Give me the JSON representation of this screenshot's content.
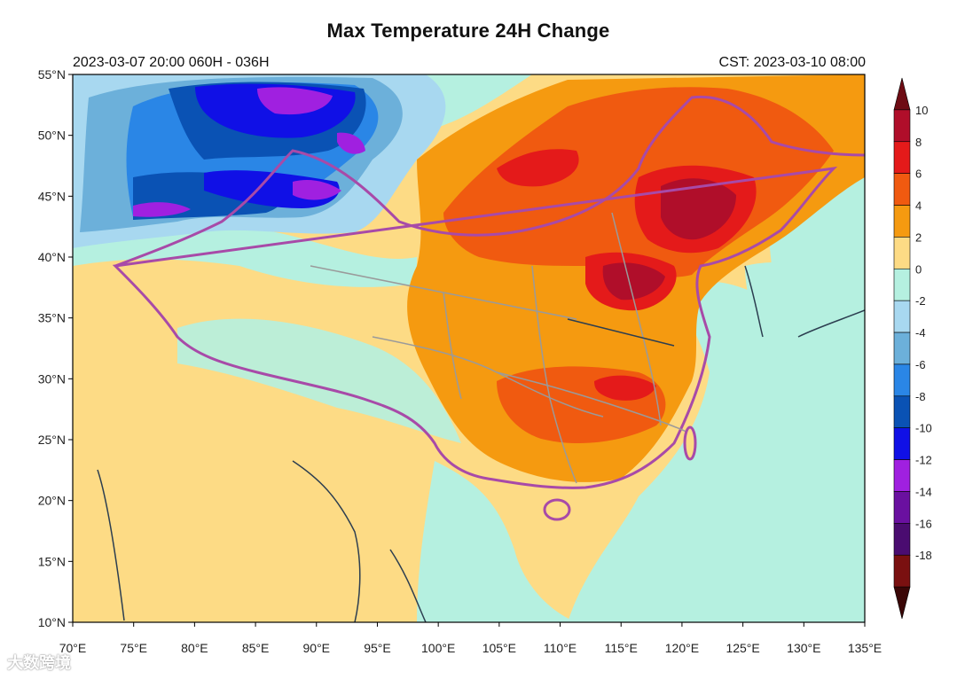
{
  "title": "Max Temperature 24H Change",
  "subtitle_left": "2023-03-07 20:00  060H - 036H",
  "subtitle_right": "CST: 2023-03-10 08:00",
  "lon_ticks": [
    "70°E",
    "75°E",
    "80°E",
    "85°E",
    "90°E",
    "95°E",
    "100°E",
    "105°E",
    "110°E",
    "115°E",
    "120°E",
    "125°E",
    "130°E",
    "135°E"
  ],
  "lat_ticks": [
    "55°N",
    "50°N",
    "45°N",
    "40°N",
    "35°N",
    "30°N",
    "25°N",
    "20°N",
    "15°N",
    "10°N"
  ],
  "colorbar": {
    "labels": [
      "10",
      "8",
      "6",
      "4",
      "2",
      "0",
      "-2",
      "-4",
      "-6",
      "-8",
      "-10",
      "-12",
      "-14",
      "-16",
      "-18"
    ],
    "colors": [
      "#6e0c14",
      "#b00e2a",
      "#e41a1a",
      "#f05a10",
      "#f59a10",
      "#fddb85",
      "#b5f0e0",
      "#a8d8f0",
      "#6cb0da",
      "#2a86e6",
      "#0a52b4",
      "#1010e6",
      "#a020e0",
      "#6a10a0",
      "#4a0c70",
      "#7a1010",
      "#3a0606"
    ]
  },
  "watermark": "大数跨境",
  "colors": {
    "ocean_land_base": "#fddb85",
    "border": "#a84aa8",
    "province": "#9a9a9a",
    "coast": "#2c3e50"
  }
}
